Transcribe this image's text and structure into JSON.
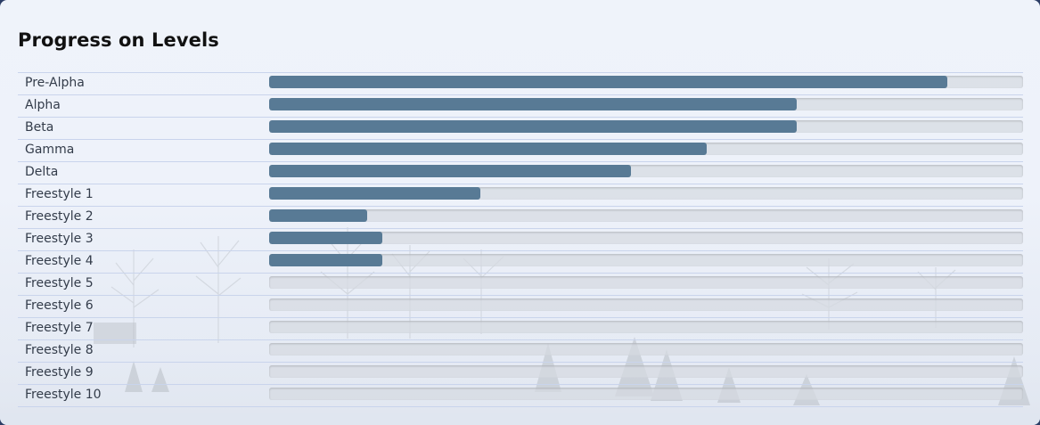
{
  "panel": {
    "title": "Progress on Levels"
  },
  "levels": [
    {
      "label": "Pre-Alpha",
      "progress": 0.9
    },
    {
      "label": "Alpha",
      "progress": 0.7
    },
    {
      "label": "Beta",
      "progress": 0.7
    },
    {
      "label": "Gamma",
      "progress": 0.58
    },
    {
      "label": "Delta",
      "progress": 0.48
    },
    {
      "label": "Freestyle 1",
      "progress": 0.28
    },
    {
      "label": "Freestyle 2",
      "progress": 0.13
    },
    {
      "label": "Freestyle 3",
      "progress": 0.15
    },
    {
      "label": "Freestyle 4",
      "progress": 0.15
    },
    {
      "label": "Freestyle 5",
      "progress": 0
    },
    {
      "label": "Freestyle 6",
      "progress": 0
    },
    {
      "label": "Freestyle 7",
      "progress": 0
    },
    {
      "label": "Freestyle 8",
      "progress": 0
    },
    {
      "label": "Freestyle 9",
      "progress": 0
    },
    {
      "label": "Freestyle 10",
      "progress": 0
    }
  ],
  "colors": {
    "bar_fill": "#587a95",
    "bar_track": "#d6dae1",
    "row_divider": "#c9d4ec"
  }
}
